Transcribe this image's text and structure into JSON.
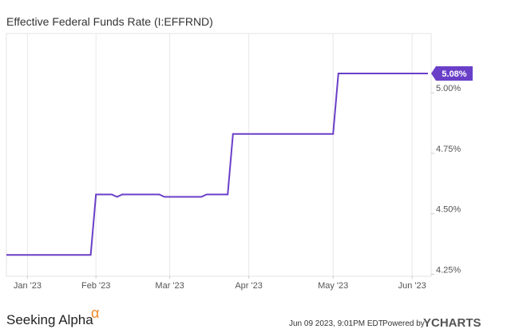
{
  "chart_data": {
    "type": "line",
    "title": "Effective Federal Funds Rate (I:EFFRND)",
    "categories": [
      null,
      null,
      null,
      null,
      "Jan '23",
      null,
      null,
      null,
      null,
      null,
      null,
      null,
      null,
      null,
      null,
      null,
      null,
      "Feb '23",
      null,
      null,
      null,
      null,
      null,
      null,
      null,
      null,
      null,
      null,
      null,
      null,
      null,
      "Mar '23",
      null,
      null,
      null,
      null,
      null,
      null,
      null,
      null,
      null,
      null,
      null,
      null,
      null,
      null,
      "Apr '23",
      null,
      null,
      null,
      null,
      null,
      null,
      null,
      null,
      null,
      null,
      null,
      null,
      null,
      null,
      null,
      "May '23",
      null,
      null,
      null,
      null,
      null,
      null,
      null,
      null,
      null,
      null,
      null,
      null,
      null,
      null,
      "Jun '23",
      null,
      null,
      null
    ],
    "series": [
      {
        "name": "Effective Federal Funds Rate",
        "color": "#6a3fc8",
        "values": [
          4.33,
          4.33,
          4.33,
          4.33,
          4.33,
          4.33,
          4.33,
          4.33,
          4.33,
          4.33,
          4.33,
          4.33,
          4.33,
          4.33,
          4.33,
          4.33,
          4.33,
          4.58,
          4.58,
          4.58,
          4.58,
          4.57,
          4.58,
          4.58,
          4.58,
          4.58,
          4.58,
          4.58,
          4.58,
          4.58,
          4.57,
          4.57,
          4.57,
          4.57,
          4.57,
          4.57,
          4.57,
          4.57,
          4.58,
          4.58,
          4.58,
          4.58,
          4.58,
          4.83,
          4.83,
          4.83,
          4.83,
          4.83,
          4.83,
          4.83,
          4.83,
          4.83,
          4.83,
          4.83,
          4.83,
          4.83,
          4.83,
          4.83,
          4.83,
          4.83,
          4.83,
          4.83,
          4.83,
          5.08,
          5.08,
          5.08,
          5.08,
          5.08,
          5.08,
          5.08,
          5.08,
          5.08,
          5.08,
          5.08,
          5.08,
          5.08,
          5.08,
          5.08,
          5.08,
          5.08,
          5.08
        ],
        "value_labels": [
          null,
          null,
          null,
          null,
          null,
          null,
          null,
          null,
          null,
          null,
          null,
          null,
          null,
          null,
          null,
          null,
          null,
          null,
          null,
          null,
          null,
          null,
          null,
          null,
          null,
          null,
          null,
          null,
          null,
          null,
          null,
          null,
          null,
          null,
          null,
          null,
          null,
          null,
          null,
          null,
          null,
          null,
          null,
          null,
          null,
          null,
          null,
          null,
          null,
          null,
          null,
          null,
          null,
          null,
          null,
          null,
          null,
          null,
          null,
          null,
          null,
          null,
          null,
          null,
          null,
          null,
          null,
          null,
          null,
          null,
          null,
          null,
          null,
          null,
          null,
          null,
          null,
          null,
          null,
          null,
          "5.08%"
        ]
      }
    ],
    "ylim": [
      4.245,
      5.245
    ],
    "yticks": [
      {
        "value": 4.25,
        "label": "4.25%"
      },
      {
        "value": 4.5,
        "label": "4.50%"
      },
      {
        "value": 4.75,
        "label": "4.75%"
      },
      {
        "value": 5,
        "label": "5.00%"
      }
    ],
    "grid": true,
    "footer_brand": "Seeking Alpha",
    "footer_symbol": "α",
    "timestamp": "Jun 09 2023, 9:01PM EDT.",
    "powered_by": "Powered by",
    "provider": "YCHARTS"
  }
}
